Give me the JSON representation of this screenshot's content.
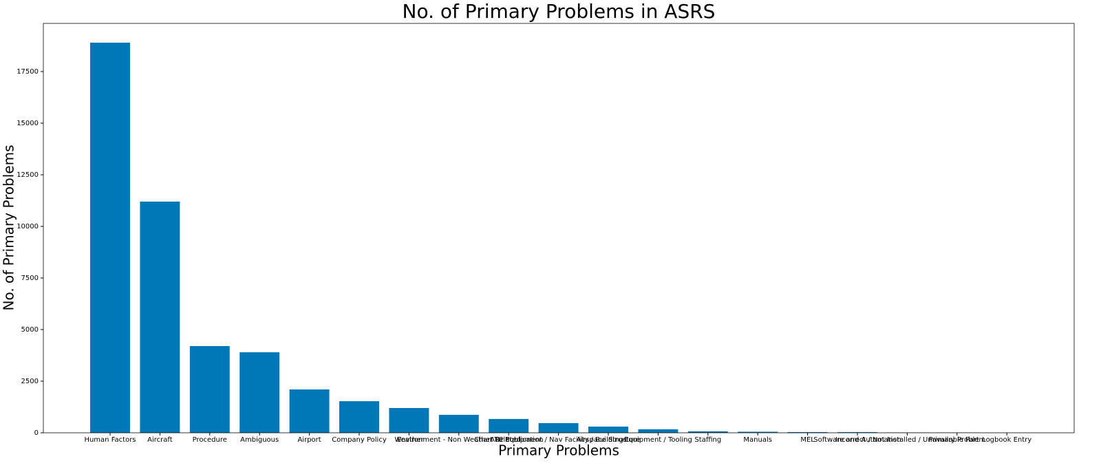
{
  "chart_data": {
    "type": "bar",
    "title": "No. of Primary Problems in ASRS",
    "x_label": "Primary Problems",
    "y_label": "No. of Primary Problems",
    "categories": [
      "Human Factors",
      "Aircraft",
      "Procedure",
      "Ambiguous",
      "Airport",
      "Company Policy",
      "Weather",
      "Environment - Non Weather Related",
      "Chart Or Publication",
      "ATC Equipment / Nav Facility / Buildings",
      "Airspace Structure",
      "Equipment / Tooling",
      "Staffing",
      "Manuals",
      "MEL",
      "Software and Automation",
      "Incorrect / Not Installed / Unavailable Part",
      "Primary Problem",
      "Logbook Entry"
    ],
    "values": [
      18900,
      11200,
      4200,
      3900,
      2100,
      1530,
      1200,
      870,
      670,
      470,
      300,
      170,
      70,
      50,
      35,
      30,
      15,
      10,
      3
    ],
    "color": "#0077b6",
    "ylim": [
      0,
      19833
    ],
    "yticks": [
      0,
      2500,
      5000,
      7500,
      10000,
      12500,
      15000,
      17500
    ]
  }
}
